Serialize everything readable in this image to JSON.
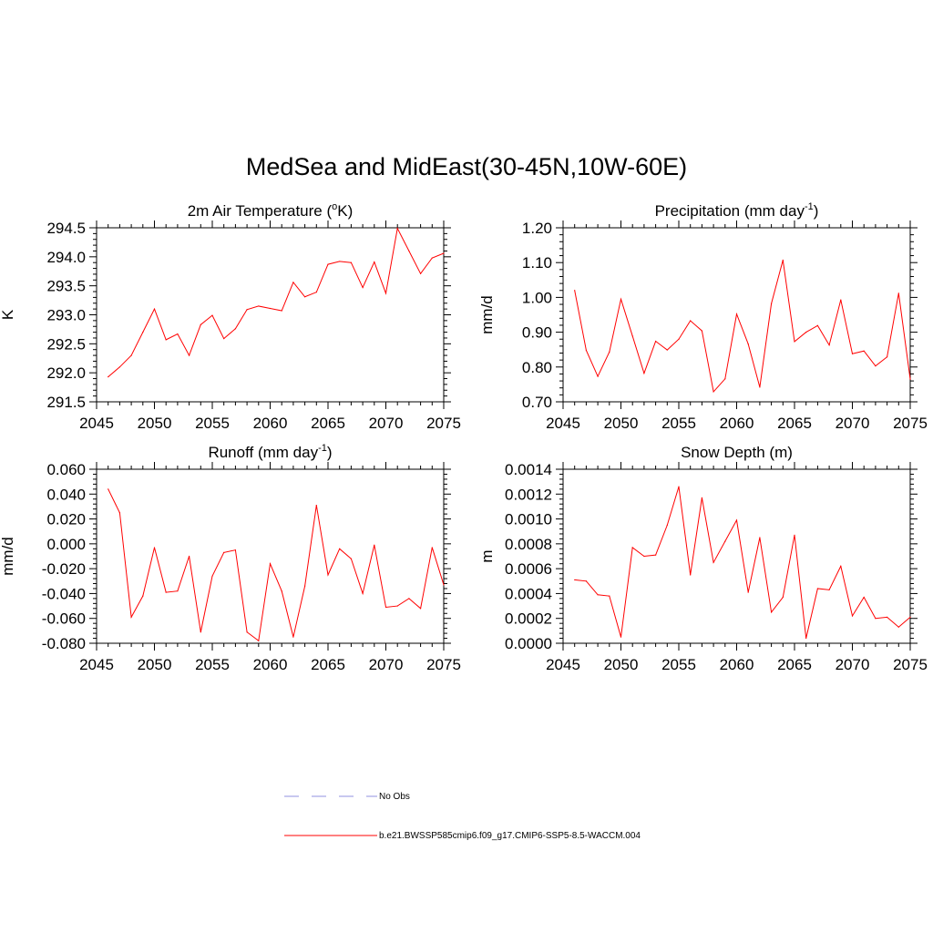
{
  "title": "MedSea and MidEast(30-45N,10W-60E)",
  "colors": {
    "model_line": "#ff0000",
    "obs_line": "#a6a6e8",
    "axis": "#000000"
  },
  "chart_data": [
    {
      "type": "line",
      "title_main": "2m Air Temperature (",
      "title_sup": "o",
      "title_tail": "K)",
      "ylabel": "K",
      "xlim": [
        2045,
        2075
      ],
      "ylim": [
        291.5,
        294.5
      ],
      "xticks": [
        2045,
        2050,
        2055,
        2060,
        2065,
        2070,
        2075
      ],
      "xtick_labels": [
        "2045",
        "2050",
        "2055",
        "2060",
        "2065",
        "2070",
        "2075"
      ],
      "yticks": [
        291.5,
        292.0,
        292.5,
        293.0,
        293.5,
        294.0,
        294.5
      ],
      "ytick_labels": [
        "291.5",
        "292.0",
        "292.5",
        "293.0",
        "293.5",
        "294.0",
        "294.5"
      ],
      "x": [
        2046,
        2047,
        2048,
        2049,
        2050,
        2051,
        2052,
        2053,
        2054,
        2055,
        2056,
        2057,
        2058,
        2059,
        2060,
        2061,
        2062,
        2063,
        2064,
        2065,
        2066,
        2067,
        2068,
        2069,
        2070,
        2071,
        2072,
        2073,
        2074,
        2075
      ],
      "y": [
        291.93,
        292.1,
        292.3,
        292.7,
        293.1,
        292.57,
        292.67,
        292.3,
        292.83,
        292.99,
        292.59,
        292.76,
        293.09,
        293.15,
        293.11,
        293.07,
        293.56,
        293.31,
        293.39,
        293.87,
        293.92,
        293.9,
        293.47,
        293.91,
        293.37,
        294.49,
        294.1,
        293.71,
        293.98,
        294.06
      ]
    },
    {
      "type": "line",
      "title_main": "Precipitation (mm day",
      "title_sup": "-1",
      "title_tail": ")",
      "ylabel": "mm/d",
      "xlim": [
        2045,
        2075
      ],
      "ylim": [
        0.7,
        1.2
      ],
      "xticks": [
        2045,
        2050,
        2055,
        2060,
        2065,
        2070,
        2075
      ],
      "xtick_labels": [
        "2045",
        "2050",
        "2055",
        "2060",
        "2065",
        "2070",
        "2075"
      ],
      "yticks": [
        0.7,
        0.8,
        0.9,
        1.0,
        1.1,
        1.2
      ],
      "ytick_labels": [
        "0.70",
        "0.80",
        "0.90",
        "1.00",
        "1.10",
        "1.20"
      ],
      "x": [
        2046,
        2047,
        2048,
        2049,
        2050,
        2051,
        2052,
        2053,
        2054,
        2055,
        2056,
        2057,
        2058,
        2059,
        2060,
        2061,
        2062,
        2063,
        2064,
        2065,
        2066,
        2067,
        2068,
        2069,
        2070,
        2071,
        2072,
        2073,
        2074,
        2075
      ],
      "y": [
        1.02,
        0.848,
        0.773,
        0.843,
        0.995,
        0.889,
        0.782,
        0.874,
        0.849,
        0.88,
        0.933,
        0.904,
        0.729,
        0.766,
        0.952,
        0.866,
        0.742,
        0.982,
        1.107,
        0.873,
        0.9,
        0.919,
        0.863,
        0.993,
        0.838,
        0.846,
        0.803,
        0.829,
        1.012,
        0.765
      ]
    },
    {
      "type": "line",
      "title_main": "Runoff (mm day",
      "title_sup": "-1",
      "title_tail": ")",
      "ylabel": "mm/d",
      "xlim": [
        2045,
        2075
      ],
      "ylim": [
        -0.08,
        0.06
      ],
      "xticks": [
        2045,
        2050,
        2055,
        2060,
        2065,
        2070,
        2075
      ],
      "xtick_labels": [
        "2045",
        "2050",
        "2055",
        "2060",
        "2065",
        "2070",
        "2075"
      ],
      "yticks": [
        -0.08,
        -0.06,
        -0.04,
        -0.02,
        0.0,
        0.02,
        0.04,
        0.06
      ],
      "ytick_labels": [
        "-0.080",
        "-0.060",
        "-0.040",
        "-0.020",
        "0.000",
        "0.020",
        "0.040",
        "0.060"
      ],
      "x": [
        2046,
        2047,
        2048,
        2049,
        2050,
        2051,
        2052,
        2053,
        2054,
        2055,
        2056,
        2057,
        2058,
        2059,
        2060,
        2061,
        2062,
        2063,
        2064,
        2065,
        2066,
        2067,
        2068,
        2069,
        2070,
        2071,
        2072,
        2073,
        2074,
        2075
      ],
      "y": [
        0.044,
        0.025,
        -0.059,
        -0.042,
        -0.003,
        -0.039,
        -0.038,
        -0.01,
        -0.071,
        -0.026,
        -0.007,
        -0.005,
        -0.071,
        -0.078,
        -0.016,
        -0.038,
        -0.075,
        -0.034,
        0.031,
        -0.025,
        -0.004,
        -0.012,
        -0.04,
        -0.001,
        -0.051,
        -0.05,
        -0.044,
        -0.052,
        -0.003,
        -0.033
      ]
    },
    {
      "type": "line",
      "title_main": "Snow Depth (m)",
      "title_sup": "",
      "title_tail": "",
      "ylabel": "m",
      "xlim": [
        2045,
        2075
      ],
      "ylim": [
        0.0,
        0.0014
      ],
      "xticks": [
        2045,
        2050,
        2055,
        2060,
        2065,
        2070,
        2075
      ],
      "xtick_labels": [
        "2045",
        "2050",
        "2055",
        "2060",
        "2065",
        "2070",
        "2075"
      ],
      "yticks": [
        0.0,
        0.0002,
        0.0004,
        0.0006,
        0.0008,
        0.001,
        0.0012,
        0.0014
      ],
      "ytick_labels": [
        "0.0000",
        "0.0002",
        "0.0004",
        "0.0006",
        "0.0008",
        "0.0010",
        "0.0012",
        "0.0014"
      ],
      "x": [
        2046,
        2047,
        2048,
        2049,
        2050,
        2051,
        2052,
        2053,
        2054,
        2055,
        2056,
        2057,
        2058,
        2059,
        2060,
        2061,
        2062,
        2063,
        2064,
        2065,
        2066,
        2067,
        2068,
        2069,
        2070,
        2071,
        2072,
        2073,
        2074,
        2075
      ],
      "y": [
        0.00051,
        0.0005,
        0.00039,
        0.00038,
        5e-05,
        0.00077,
        0.0007,
        0.00071,
        0.00095,
        0.00126,
        0.00055,
        0.00117,
        0.00065,
        0.00082,
        0.00099,
        0.00041,
        0.00085,
        0.00025,
        0.00037,
        0.00087,
        4e-05,
        0.00044,
        0.00043,
        0.00062,
        0.00022,
        0.00037,
        0.0002,
        0.00021,
        0.00013,
        0.00021
      ]
    }
  ],
  "legend": {
    "obs_label": "No Obs",
    "model_label": "b.e21.BWSSP585cmip6.f09_g17.CMIP6-SSP5-8.5-WACCM.004"
  }
}
